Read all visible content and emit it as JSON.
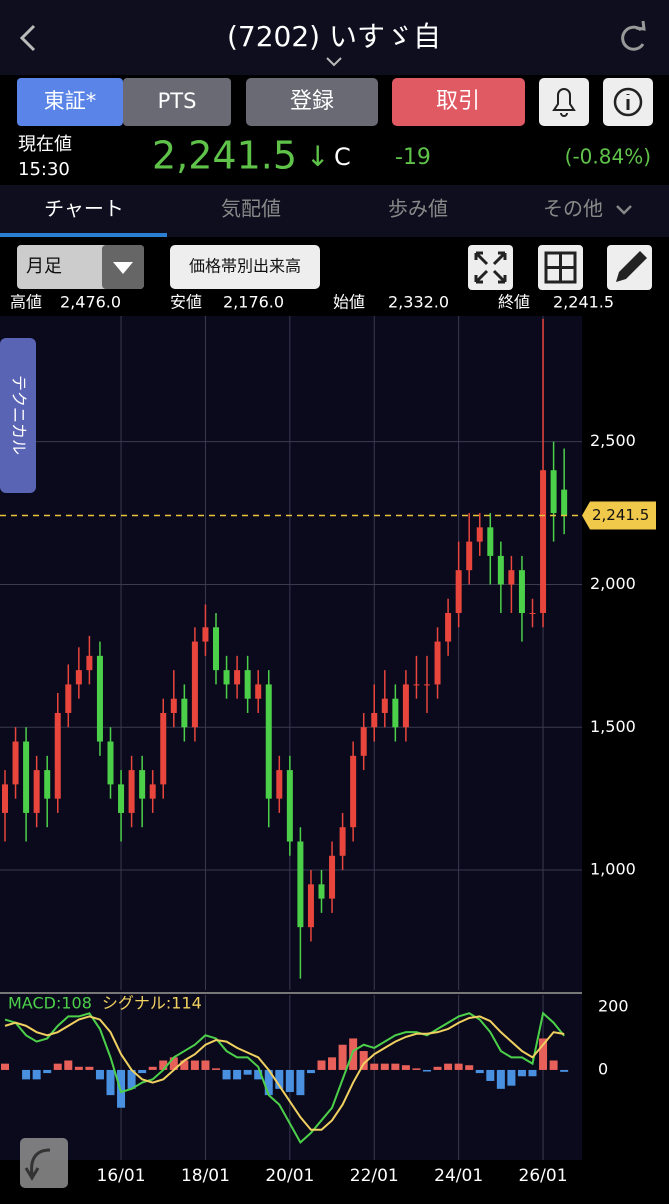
{
  "header": {
    "title": "(7202) いすゞ自"
  },
  "buttons": [
    "東証*",
    "PTS",
    "登録",
    "取引"
  ],
  "price": {
    "label": "現在値",
    "time": "15:30",
    "value": "2,241.5",
    "arrow": "↓",
    "flag": "C",
    "change": "-19",
    "change_pct": "(-0.84%)"
  },
  "tabs": [
    "チャート",
    "気配値",
    "歩み値",
    "その他"
  ],
  "controls": {
    "period": "月足",
    "volume_profile": "価格帯別出来高"
  },
  "ohlc": [
    {
      "label": "高値",
      "value": "2,476.0"
    },
    {
      "label": "安値",
      "value": "2,176.0"
    },
    {
      "label": "始値",
      "value": "2,332.0"
    },
    {
      "label": "終値",
      "value": "2,241.5"
    }
  ],
  "side_tab": "テクニカル",
  "chart_data": [
    {
      "type": "candlestick",
      "categories": [
        null,
        null,
        null,
        null,
        null,
        null,
        null,
        null,
        null,
        null,
        null,
        "16/01",
        null,
        null,
        null,
        null,
        null,
        null,
        null,
        "18/01",
        null,
        null,
        null,
        null,
        null,
        null,
        null,
        "20/01",
        null,
        null,
        null,
        null,
        null,
        null,
        null,
        "22/01",
        null,
        null,
        null,
        null,
        null,
        null,
        null,
        "24/01",
        null,
        null,
        null,
        null,
        null,
        null,
        null,
        "26/01",
        null,
        null
      ],
      "open": [
        1200,
        1300,
        1450,
        1200,
        1350,
        1250,
        1550,
        1650,
        1700,
        1750,
        1450,
        1300,
        1200,
        1350,
        1250,
        1300,
        1550,
        1600,
        1500,
        1800,
        1850,
        1700,
        1650,
        1700,
        1600,
        1650,
        1250,
        1350,
        1100,
        800,
        950,
        900,
        1050,
        1150,
        1400,
        1500,
        1550,
        1600,
        1500,
        1650,
        1650,
        1650,
        1800,
        1900,
        2050,
        2150,
        2200,
        2100,
        2000,
        2050,
        1900,
        1900,
        2400,
        2332
      ],
      "high": [
        1350,
        1500,
        1500,
        1400,
        1400,
        1620,
        1720,
        1780,
        1820,
        1800,
        1500,
        1350,
        1400,
        1400,
        1350,
        1600,
        1700,
        1650,
        1850,
        1930,
        1900,
        1750,
        1750,
        1750,
        1700,
        1700,
        1400,
        1400,
        1150,
        1000,
        1000,
        1100,
        1200,
        1450,
        1550,
        1650,
        1700,
        1650,
        1700,
        1750,
        1750,
        1850,
        1950,
        2150,
        2250,
        2250,
        2250,
        2150,
        2100,
        2100,
        1950,
        2930,
        2500,
        2476
      ],
      "low": [
        1100,
        1250,
        1100,
        1150,
        1150,
        1200,
        1500,
        1600,
        1650,
        1400,
        1250,
        1100,
        1150,
        1150,
        1200,
        1250,
        1500,
        1450,
        1450,
        1750,
        1650,
        1600,
        1600,
        1550,
        1550,
        1150,
        1200,
        1050,
        620,
        750,
        850,
        850,
        1000,
        1100,
        1350,
        1450,
        1500,
        1450,
        1450,
        1600,
        1550,
        1600,
        1750,
        1850,
        2000,
        2100,
        2000,
        1900,
        1900,
        1800,
        1850,
        1850,
        2150,
        2176
      ],
      "close": [
        1300,
        1450,
        1200,
        1350,
        1250,
        1550,
        1650,
        1700,
        1750,
        1450,
        1300,
        1200,
        1350,
        1250,
        1300,
        1550,
        1600,
        1500,
        1800,
        1850,
        1700,
        1650,
        1700,
        1600,
        1650,
        1250,
        1350,
        1100,
        800,
        950,
        900,
        1050,
        1150,
        1400,
        1500,
        1550,
        1600,
        1500,
        1650,
        1650,
        1650,
        1800,
        1900,
        2050,
        2150,
        2200,
        2100,
        2000,
        2050,
        1900,
        1900,
        2400,
        2250,
        2241.5
      ],
      "up_color": "#e8453c",
      "down_color": "#4cd04a",
      "ylim": [
        580,
        2940
      ],
      "yticks": [
        {
          "value": 1000,
          "label": "1,000"
        },
        {
          "value": 1500,
          "label": "1,500"
        },
        {
          "value": 2000,
          "label": "2,000"
        },
        {
          "value": 2500,
          "label": "2,500"
        }
      ],
      "last": {
        "value": 2241.5,
        "label": "2,241.5"
      },
      "grid": true
    },
    {
      "type": "macd",
      "series": [
        {
          "name": "MACD:108",
          "color": "#4cd04a",
          "values": [
            160,
            150,
            110,
            90,
            100,
            140,
            170,
            170,
            180,
            130,
            40,
            -70,
            -60,
            -40,
            -30,
            0,
            40,
            60,
            80,
            110,
            100,
            60,
            40,
            40,
            10,
            -80,
            -110,
            -170,
            -230,
            -200,
            -160,
            -120,
            -30,
            60,
            80,
            70,
            90,
            110,
            120,
            120,
            110,
            130,
            150,
            170,
            180,
            160,
            120,
            60,
            40,
            40,
            20,
            180,
            150,
            108
          ]
        },
        {
          "name": "シグナル:114",
          "color": "#f0d060",
          "values": [
            140,
            150,
            140,
            120,
            110,
            120,
            140,
            160,
            170,
            160,
            120,
            50,
            0,
            -30,
            -40,
            -30,
            0,
            30,
            50,
            80,
            95,
            90,
            70,
            55,
            40,
            0,
            -50,
            -100,
            -150,
            -190,
            -190,
            -160,
            -110,
            -40,
            20,
            50,
            70,
            90,
            105,
            115,
            115,
            120,
            130,
            150,
            165,
            170,
            155,
            120,
            90,
            60,
            40,
            80,
            120,
            114
          ]
        }
      ],
      "histogram": [
        20,
        0,
        -30,
        -30,
        -10,
        20,
        30,
        10,
        10,
        -30,
        -80,
        -120,
        -60,
        -10,
        10,
        30,
        40,
        30,
        30,
        30,
        5,
        -30,
        -30,
        -15,
        -30,
        -80,
        -60,
        -70,
        -80,
        -10,
        30,
        40,
        80,
        100,
        60,
        20,
        20,
        20,
        15,
        5,
        -5,
        10,
        20,
        20,
        15,
        -10,
        -35,
        -60,
        -50,
        -20,
        -20,
        100,
        30,
        -6
      ],
      "hist_up_color": "#e8605a",
      "hist_down_color": "#4a90e0",
      "ylim": [
        -286,
        238
      ],
      "yticks": [
        0,
        200
      ]
    }
  ]
}
